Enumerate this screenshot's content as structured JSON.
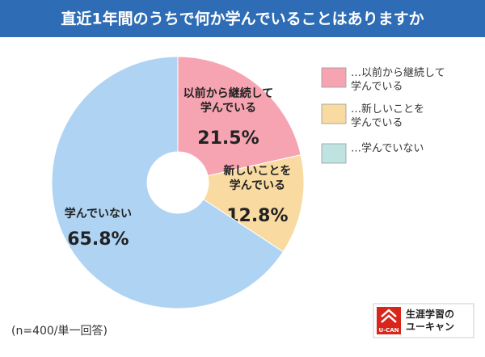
{
  "chart_data": {
    "type": "donut",
    "title": "直近1年間のうちで何か学んでいることはありますか",
    "categories": [
      "以前から継続して\n学んでいる",
      "新しいことを\n学んでいる",
      "学んでいない"
    ],
    "values": [
      21.5,
      12.8,
      65.8
    ],
    "value_labels": [
      "21.5%",
      "12.8%",
      "65.8%"
    ],
    "colors": [
      "#f7a4b2",
      "#f9dba2",
      "#aed3f3"
    ],
    "legend_labels": [
      "…以前から継続して\n学んでいる",
      "…新しいことを\n学んでいる",
      "…学んでいない"
    ],
    "legend_colors": [
      "#f7a4b2",
      "#f9dba2",
      "#bfe3e1"
    ],
    "note": "(n=400/単一回答)",
    "logo_mark": "U-CAN",
    "logo_text": "生涯学習の\nユーキャン"
  }
}
